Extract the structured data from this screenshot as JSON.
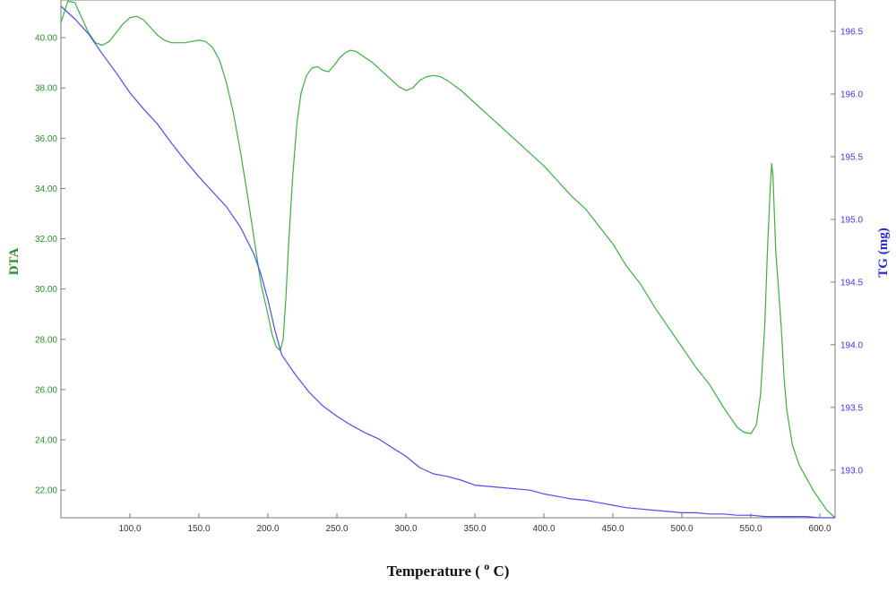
{
  "chart_data": {
    "type": "line",
    "xlabel": "Temperature ( ºC)",
    "xlabel_sup": "o",
    "xlabel_main": "Temperature (",
    "xlabel_unit": "C)",
    "ylabel_left": "DTA",
    "ylabel_right": "TG  (mg)",
    "xlim": [
      50,
      611
    ],
    "ylim_left": [
      20.9,
      41.5
    ],
    "ylim_right": [
      192.62,
      196.75
    ],
    "x_ticks": [
      100,
      150,
      200,
      250,
      300,
      350,
      400,
      450,
      500,
      550,
      600
    ],
    "x_tick_labels": [
      "100.0",
      "150.0",
      "200.0",
      "250.0",
      "300.0",
      "350.0",
      "400.0",
      "450.0",
      "500.0",
      "550.0",
      "600.0"
    ],
    "y_left_ticks": [
      22,
      24,
      26,
      28,
      30,
      32,
      34,
      36,
      38,
      40
    ],
    "y_left_tick_labels": [
      "22.00",
      "24.00",
      "26.00",
      "28.00",
      "30.00",
      "32.00",
      "34.00",
      "36.00",
      "38.00",
      "40.00"
    ],
    "y_right_ticks": [
      193.0,
      193.5,
      194.0,
      194.5,
      195.0,
      195.5,
      196.0,
      196.5
    ],
    "y_right_tick_labels": [
      "193.0",
      "193.5",
      "194.0",
      "194.5",
      "195.0",
      "195.5",
      "196.0",
      "196.5"
    ],
    "grid": false,
    "series": [
      {
        "name": "DTA",
        "axis": "left",
        "color": "#3fae3f",
        "x": [
          50,
          55,
          60,
          65,
          70,
          75,
          80,
          85,
          90,
          95,
          100,
          105,
          110,
          115,
          120,
          125,
          130,
          135,
          140,
          145,
          150,
          155,
          160,
          165,
          170,
          175,
          180,
          185,
          190,
          195,
          200,
          203,
          206,
          209,
          211,
          213,
          215,
          218,
          221,
          224,
          228,
          232,
          236,
          240,
          244,
          248,
          252,
          256,
          260,
          264,
          268,
          272,
          276,
          280,
          285,
          290,
          295,
          300,
          305,
          310,
          315,
          320,
          325,
          330,
          340,
          350,
          360,
          370,
          380,
          390,
          400,
          410,
          420,
          430,
          440,
          450,
          460,
          470,
          480,
          490,
          500,
          510,
          520,
          530,
          540,
          545,
          550,
          554,
          557,
          560,
          562,
          564,
          565,
          566,
          568,
          570,
          572,
          574,
          576,
          578,
          580,
          585,
          590,
          595,
          600,
          605,
          611
        ],
        "values": [
          40.6,
          41.45,
          41.4,
          40.8,
          40.2,
          39.8,
          39.7,
          39.85,
          40.2,
          40.55,
          40.8,
          40.85,
          40.7,
          40.4,
          40.1,
          39.9,
          39.8,
          39.8,
          39.8,
          39.85,
          39.9,
          39.85,
          39.6,
          39.1,
          38.2,
          37.0,
          35.5,
          33.8,
          32.0,
          30.2,
          29.0,
          28.2,
          27.7,
          27.55,
          28.0,
          29.6,
          31.8,
          34.5,
          36.6,
          37.8,
          38.5,
          38.8,
          38.85,
          38.7,
          38.65,
          38.9,
          39.2,
          39.4,
          39.5,
          39.45,
          39.3,
          39.15,
          39.0,
          38.8,
          38.55,
          38.3,
          38.05,
          37.9,
          38.0,
          38.3,
          38.45,
          38.5,
          38.45,
          38.3,
          37.9,
          37.4,
          36.9,
          36.4,
          35.9,
          35.4,
          34.9,
          34.3,
          33.7,
          33.2,
          32.5,
          31.8,
          30.9,
          30.2,
          29.3,
          28.5,
          27.7,
          26.9,
          26.2,
          25.3,
          24.5,
          24.3,
          24.25,
          24.6,
          25.8,
          28.5,
          31.5,
          34.0,
          35.0,
          34.5,
          31.5,
          30.0,
          28.5,
          26.5,
          25.2,
          24.5,
          23.8,
          23.0,
          22.5,
          22.0,
          21.6,
          21.2,
          20.9
        ]
      },
      {
        "name": "TG",
        "axis": "right",
        "color": "#4c4cf0",
        "x": [
          50,
          60,
          70,
          80,
          90,
          100,
          110,
          120,
          130,
          140,
          150,
          160,
          170,
          180,
          190,
          195,
          200,
          205,
          210,
          215,
          220,
          230,
          240,
          250,
          260,
          270,
          280,
          290,
          300,
          310,
          320,
          330,
          340,
          350,
          360,
          370,
          380,
          390,
          400,
          410,
          420,
          430,
          440,
          450,
          460,
          470,
          480,
          490,
          500,
          510,
          520,
          530,
          540,
          550,
          560,
          570,
          580,
          590,
          600,
          611
        ],
        "values": [
          196.7,
          196.6,
          196.48,
          196.32,
          196.17,
          196.01,
          195.88,
          195.76,
          195.61,
          195.47,
          195.34,
          195.22,
          195.1,
          194.94,
          194.72,
          194.56,
          194.36,
          194.12,
          193.92,
          193.84,
          193.76,
          193.62,
          193.51,
          193.43,
          193.36,
          193.3,
          193.25,
          193.18,
          193.11,
          193.02,
          192.97,
          192.95,
          192.92,
          192.88,
          192.87,
          192.86,
          192.85,
          192.84,
          192.81,
          192.79,
          192.77,
          192.76,
          192.74,
          192.72,
          192.7,
          192.69,
          192.68,
          192.67,
          192.66,
          192.66,
          192.65,
          192.65,
          192.64,
          192.64,
          192.63,
          192.63,
          192.63,
          192.63,
          192.62,
          192.62
        ]
      }
    ]
  }
}
